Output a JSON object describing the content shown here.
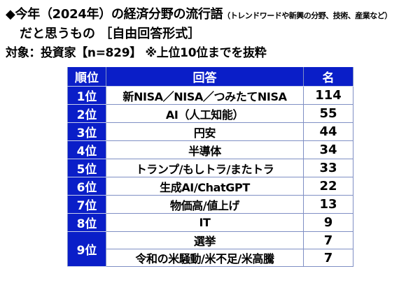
{
  "title": {
    "line1_main": "◆今年（2024年）の経済分野の流行語",
    "line1_note": "（トレンドワードや新興の分野、技術、産業など）",
    "line2": "だと思うもの ［自由回答形式］"
  },
  "subtitle": "対象：投資家【n=829】 ※上位10位までを抜粋",
  "table": {
    "headers": [
      "順位",
      "回答",
      "名"
    ],
    "header_bg": "#0a1ec8",
    "rows": [
      {
        "rank": "1位",
        "answer": "新NISA／NISA／つみたてNISA",
        "count": "114"
      },
      {
        "rank": "2位",
        "answer": "AI（人工知能）",
        "count": "55"
      },
      {
        "rank": "3位",
        "answer": "円安",
        "count": "44"
      },
      {
        "rank": "4位",
        "answer": "半導体",
        "count": "34"
      },
      {
        "rank": "5位",
        "answer": "トランプ/もしトラ/またトラ",
        "count": "33"
      },
      {
        "rank": "6位",
        "answer": "生成AI/ChatGPT",
        "count": "22"
      },
      {
        "rank": "7位",
        "answer": "物価高/値上げ",
        "count": "13"
      },
      {
        "rank": "8位",
        "answer": "IT",
        "count": "9"
      },
      {
        "rank": "9位",
        "answer": "選挙",
        "count": "7"
      },
      {
        "rank": "9位",
        "answer": "令和の米騒動/米不足/米高騰",
        "count": "7"
      }
    ]
  },
  "chart_data": {
    "type": "table",
    "title": "今年（2024年）の経済分野の流行語（トレンドワードや新興の分野、技術、産業など）だと思うもの［自由回答形式］",
    "subtitle": "対象：投資家【n=829】 ※上位10位までを抜粋",
    "columns": [
      "順位",
      "回答",
      "名"
    ],
    "rows": [
      [
        "1位",
        "新NISA／NISA／つみたてNISA",
        114
      ],
      [
        "2位",
        "AI（人工知能）",
        55
      ],
      [
        "3位",
        "円安",
        44
      ],
      [
        "4位",
        "半導体",
        34
      ],
      [
        "5位",
        "トランプ/もしトラ/またトラ",
        33
      ],
      [
        "6位",
        "生成AI/ChatGPT",
        22
      ],
      [
        "7位",
        "物価高/値上げ",
        13
      ],
      [
        "8位",
        "IT",
        9
      ],
      [
        "9位",
        "選挙",
        7
      ],
      [
        "9位",
        "令和の米騒動/米不足/米高騰",
        7
      ]
    ]
  }
}
